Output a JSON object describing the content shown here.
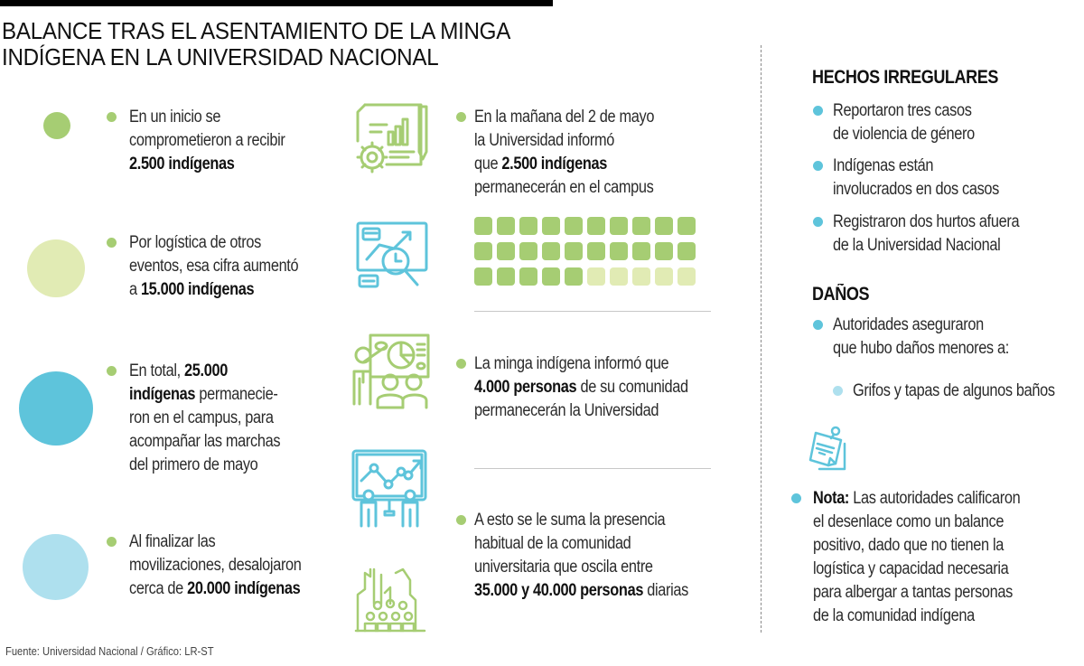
{
  "title": {
    "line1": "BALANCE TRAS EL ASENTAMIENTO DE LA MINGA",
    "line2": "INDÍGENA EN LA UNIVERSIDAD NACIONAL"
  },
  "colors": {
    "green": "#a6cd73",
    "light_green": "#e1ebb4",
    "blue": "#5ec4db",
    "light_blue": "#aee0ee",
    "text": "#2b2b2b",
    "rule": "#000000"
  },
  "left_column": {
    "items": [
      {
        "circle_color": "#a6cd73",
        "circle_size": 30,
        "lines": [
          {
            "parts": [
              {
                "t": "En un inicio se",
                "b": false
              }
            ]
          },
          {
            "parts": [
              {
                "t": "comprometieron a recibir",
                "b": false
              }
            ]
          },
          {
            "parts": [
              {
                "t": "2.500 indígenas",
                "b": true
              }
            ]
          }
        ]
      },
      {
        "circle_color": "#e1ebb4",
        "circle_size": 64,
        "lines": [
          {
            "parts": [
              {
                "t": "Por logística de otros",
                "b": false
              }
            ]
          },
          {
            "parts": [
              {
                "t": "eventos, esa cifra aumentó",
                "b": false
              }
            ]
          },
          {
            "parts": [
              {
                "t": "a ",
                "b": false
              },
              {
                "t": "15.000 indígenas",
                "b": true
              }
            ]
          }
        ]
      },
      {
        "circle_color": "#5ec4db",
        "circle_size": 82,
        "lines": [
          {
            "parts": [
              {
                "t": "En total, ",
                "b": false
              },
              {
                "t": "25.000",
                "b": true
              }
            ]
          },
          {
            "parts": [
              {
                "t": "indígenas",
                "b": true
              },
              {
                "t": " permanecie-",
                "b": false
              }
            ]
          },
          {
            "parts": [
              {
                "t": "ron en el campus, para",
                "b": false
              }
            ]
          },
          {
            "parts": [
              {
                "t": "acompañar las marchas",
                "b": false
              }
            ]
          },
          {
            "parts": [
              {
                "t": "del primero de mayo",
                "b": false
              }
            ]
          }
        ]
      },
      {
        "circle_color": "#aee0ee",
        "circle_size": 73,
        "lines": [
          {
            "parts": [
              {
                "t": "Al finalizar las",
                "b": false
              }
            ]
          },
          {
            "parts": [
              {
                "t": "movilizaciones, desalojaron",
                "b": false
              }
            ]
          },
          {
            "parts": [
              {
                "t": "cerca de ",
                "b": false
              },
              {
                "t": "20.000 indígenas",
                "b": true
              }
            ]
          }
        ]
      }
    ]
  },
  "middle_column": {
    "items": [
      {
        "lines": [
          {
            "parts": [
              {
                "t": "En la mañana del 2 de mayo",
                "b": false
              }
            ]
          },
          {
            "parts": [
              {
                "t": "la Universidad informó",
                "b": false
              }
            ]
          },
          {
            "parts": [
              {
                "t": "que ",
                "b": false
              },
              {
                "t": "2.500 indígenas",
                "b": true
              }
            ]
          },
          {
            "parts": [
              {
                "t": "permanecerán en el campus",
                "b": false
              }
            ]
          }
        ]
      },
      {
        "lines": [
          {
            "parts": [
              {
                "t": "La minga indígena informó que",
                "b": false
              }
            ]
          },
          {
            "parts": [
              {
                "t": "4.000 personas",
                "b": true
              },
              {
                "t": " de su comunidad",
                "b": false
              }
            ]
          },
          {
            "parts": [
              {
                "t": "permanecerán la Universidad",
                "b": false
              }
            ]
          }
        ]
      },
      {
        "lines": [
          {
            "parts": [
              {
                "t": "A esto se le suma la presencia",
                "b": false
              }
            ]
          },
          {
            "parts": [
              {
                "t": "habitual de la comunidad",
                "b": false
              }
            ]
          },
          {
            "parts": [
              {
                "t": "universitaria que oscila entre",
                "b": false
              }
            ]
          },
          {
            "parts": [
              {
                "t": "35.000 y 40.000 personas",
                "b": true
              },
              {
                "t": " diarias",
                "b": false
              }
            ]
          }
        ]
      }
    ],
    "waffle": {
      "total": 30,
      "filled": 25,
      "filled_color": "#a6cd73",
      "empty_color": "#e1ebb4"
    },
    "icons": [
      "report-gear-icon",
      "analysis-magnifier-icon",
      "presentation-audience-icon",
      "team-chart-board-icon",
      "city-crowd-icon"
    ]
  },
  "right_column": {
    "hechos": {
      "heading": "HECHOS IRREGULARES",
      "items": [
        [
          "Reportaron tres casos",
          "de violencia de género"
        ],
        [
          "Indígenas están",
          "involucrados en dos casos"
        ],
        [
          "Registraron dos hurtos afuera",
          "de la Universidad Nacional"
        ]
      ]
    },
    "danos": {
      "heading": "DAÑOS",
      "items": [
        [
          "Autoridades aseguraron",
          "que hubo daños menores a:"
        ]
      ],
      "subitems": [
        "Grifos y tapas de algunos baños"
      ]
    },
    "nota": {
      "label": "Nota:",
      "lines": [
        " Las autoridades calificaron",
        "el desenlace como un balance",
        "positivo, dado que no tienen la",
        "logística y capacidad necesaria",
        "para albergar a tantas personas",
        "de la comunidad indígena"
      ]
    }
  },
  "footer": {
    "source": "Fuente: Universidad Nacional / Gráfico: LR-ST"
  }
}
